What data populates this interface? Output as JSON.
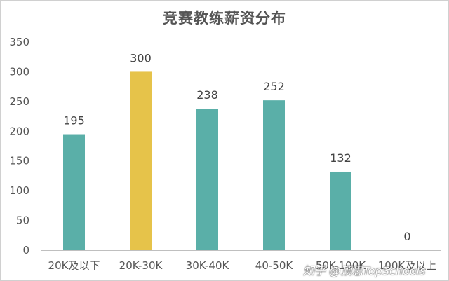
{
  "chart_data": {
    "type": "bar",
    "title": "竞赛教练薪资分布",
    "categories": [
      "20K及以下",
      "20K-30K",
      "30K-40K",
      "40-50K",
      "50K-100K",
      "100K及以上"
    ],
    "values": [
      195,
      300,
      238,
      252,
      132,
      0
    ],
    "highlight_index": 1,
    "colors": {
      "default": "#5aafa8",
      "highlight": "#e6c34a"
    },
    "ylim": [
      0,
      350
    ],
    "yticks": [
      0,
      50,
      100,
      150,
      200,
      250,
      300,
      350
    ],
    "grid": false,
    "legend": "none"
  },
  "watermark": "知乎 @顶思TopSchools"
}
